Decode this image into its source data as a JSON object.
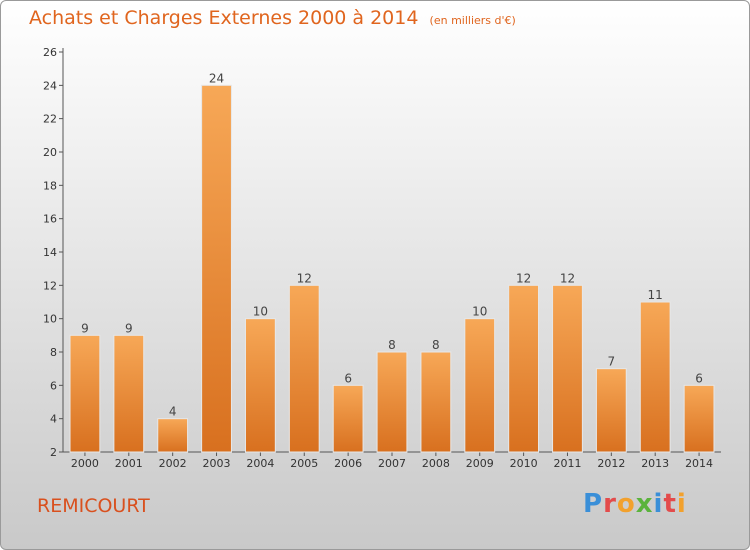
{
  "title": "Achats et Charges Externes 2000 à 2014",
  "subtitle": "(en milliers d'€)",
  "place": "REMICOURT",
  "logo": {
    "text": "Proxiti",
    "colors": [
      "#3a8fd8",
      "#e34b4b",
      "#f2a12d",
      "#5bb33d",
      "#3a8fd8",
      "#e34b4b",
      "#f2a12d"
    ]
  },
  "chart_data": {
    "type": "bar",
    "categories": [
      "2000",
      "2001",
      "2002",
      "2003",
      "2004",
      "2005",
      "2006",
      "2007",
      "2008",
      "2009",
      "2010",
      "2011",
      "2012",
      "2013",
      "2014"
    ],
    "values": [
      9,
      9,
      4,
      24,
      10,
      12,
      6,
      8,
      8,
      10,
      12,
      12,
      7,
      11,
      6
    ],
    "title": "Achats et Charges Externes 2000 à 2014",
    "subtitle": "(en milliers d'€)",
    "xlabel": "",
    "ylabel": "",
    "ylim": [
      2,
      26
    ],
    "yticks": [
      2,
      4,
      6,
      8,
      10,
      12,
      14,
      16,
      18,
      20,
      22,
      24,
      26
    ],
    "grid": false,
    "bar_color": "#f2913a"
  }
}
